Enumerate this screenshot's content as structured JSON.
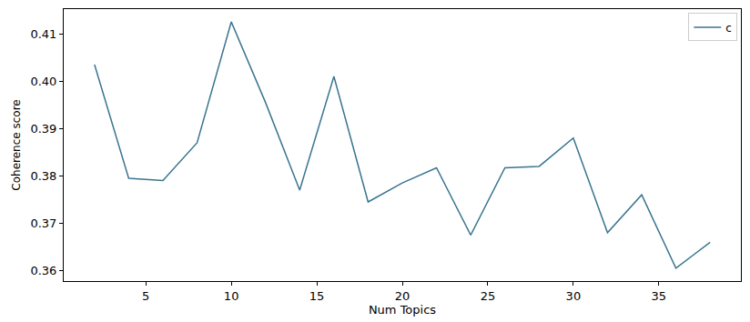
{
  "chart_data": {
    "type": "line",
    "x_label": "Num Topics",
    "y_label": "Coherence score",
    "x": [
      2,
      4,
      6,
      8,
      10,
      12,
      14,
      16,
      18,
      20,
      22,
      24,
      26,
      28,
      30,
      32,
      34,
      36,
      38
    ],
    "series": [
      {
        "name": "c",
        "color": "#3a7590",
        "values": [
          0.4035,
          0.3795,
          0.379,
          0.387,
          0.4125,
          0.3955,
          0.377,
          0.401,
          0.3745,
          0.3785,
          0.3817,
          0.3675,
          0.3817,
          0.382,
          0.388,
          0.368,
          0.376,
          0.3605,
          0.366
        ]
      }
    ],
    "xlim": [
      0.2,
      39.8
    ],
    "xticks": [
      5,
      10,
      15,
      20,
      25,
      30,
      35
    ],
    "ylim": [
      0.3578,
      0.4152
    ],
    "yticks": [
      0.36,
      0.37,
      0.38,
      0.39,
      {
        "value": 0.4,
        "label": "0.40"
      },
      0.41
    ],
    "grid": false,
    "legend": "upper right"
  }
}
